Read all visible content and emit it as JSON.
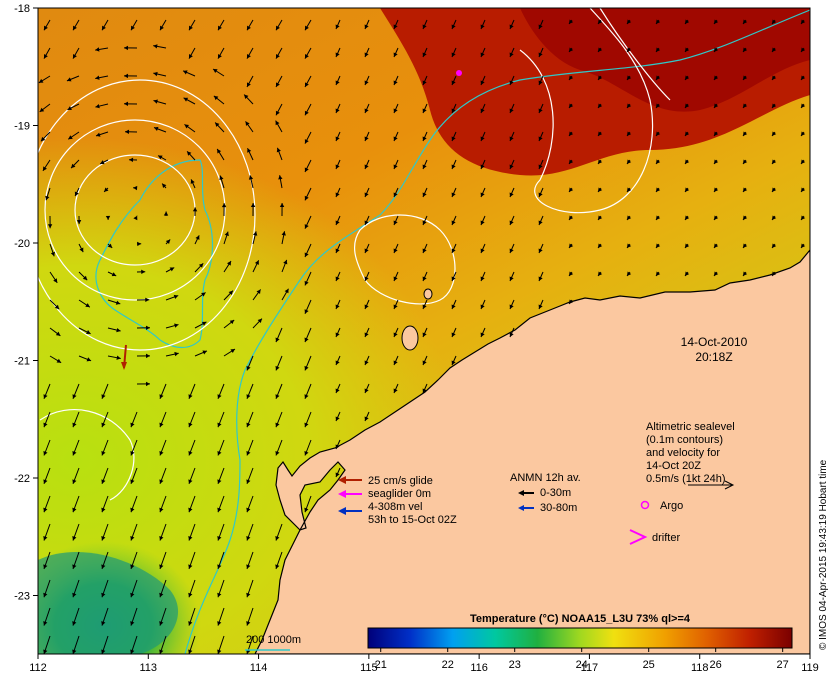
{
  "map": {
    "x_ticks": [
      "112",
      "113",
      "114",
      "115",
      "116",
      "117",
      "118",
      "119"
    ],
    "y_ticks": [
      "-18",
      "-19",
      "-20",
      "-21",
      "-22",
      "-23"
    ],
    "date_label": "14-Oct-2010",
    "time_label": "20:18Z",
    "credit": "© IMOS 04-Apr-2015 19:43:19 Hobart time",
    "altimetry_lines": [
      "Altimetric sealevel",
      "(0.1m contours)",
      "and velocity for",
      "14-Oct 20Z",
      "0.5m/s (1kt 24h)"
    ],
    "glider_legend": [
      "25 cm/s glide",
      "seaglider 0m",
      "4-308m vel",
      "53h to 15-Oct 02Z"
    ],
    "anmn_title": "ANMN 12h av.",
    "anmn_items": [
      "0-30m",
      "30-80m"
    ],
    "argo_label": "Argo",
    "drifter_label": "drifter",
    "isobath_label": "200  1000m",
    "colorbar_title": "Temperature (°C) NOAA15_L3U 73% ql>=4",
    "colorbar_ticks": [
      "21",
      "22",
      "23",
      "24",
      "25",
      "26",
      "27"
    ],
    "colors": {
      "land": "#fbc8a0",
      "warm_deep": "#a80c00",
      "warm": "#d86000",
      "mid": "#e89a10",
      "cool_yellow": "#c8e010",
      "green": "#30b040",
      "teal": "#20a070",
      "isobath": "#30c8c8",
      "contour": "#ffffff",
      "glider": "#b02000",
      "seaglider": "#ff00ff",
      "vel": "#0030c0"
    },
    "colorbar_colors": [
      "#00007a",
      "#0030c8",
      "#00a0f0",
      "#00c8a0",
      "#20b040",
      "#a0d820",
      "#f0e010",
      "#f0a000",
      "#e06000",
      "#c02000",
      "#7a0000"
    ]
  }
}
